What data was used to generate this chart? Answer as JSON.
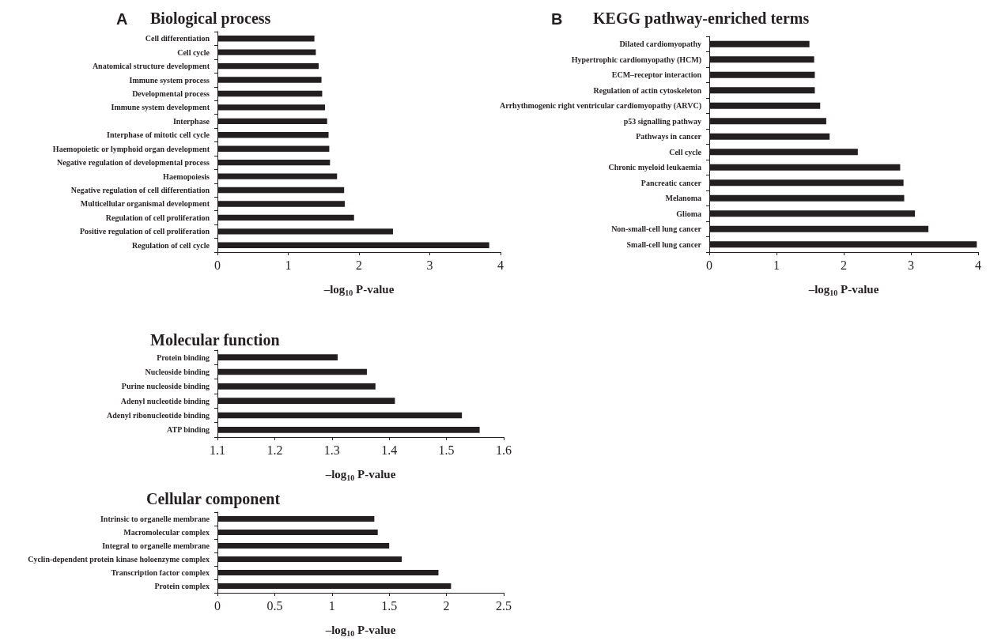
{
  "chart_data": [
    {
      "type": "bar",
      "orientation": "horizontal",
      "title": "Biological process",
      "annotations": [
        "A"
      ],
      "xlabel": "–log$_{10}$ P-value",
      "color": "#231f20",
      "categories": [
        "Cell differentiation",
        "Cell cycle",
        "Anatomical structure development",
        "Immune system process",
        "Developmental process",
        "Immune system development",
        "Interphase",
        "Interphase of mitotic cell cycle",
        "Haemopoietic or lymphoid organ development",
        "Negative regulation of developmental process",
        "Haemopoiesis",
        "Negative regulation of cell differentiation",
        "Multicellular organismal development",
        "Regulation of cell proliferation",
        "Positive regulation of cell proliferation",
        "Regulation of cell cycle"
      ],
      "values": [
        1.37,
        1.39,
        1.43,
        1.47,
        1.48,
        1.52,
        1.55,
        1.57,
        1.58,
        1.59,
        1.69,
        1.79,
        1.8,
        1.93,
        2.48,
        3.84
      ],
      "xlim": [
        0,
        4
      ],
      "xticks": [
        0,
        1,
        2,
        3,
        4
      ]
    },
    {
      "type": "bar",
      "orientation": "horizontal",
      "title": "KEGG pathway-enriched terms",
      "annotations": [
        "B"
      ],
      "xlabel": "–log$_{10}$ P-value",
      "color": "#231f20",
      "categories": [
        "Dilated cardiomyopathy",
        "Hypertrophic cardiomyopathy (HCM)",
        "ECM–receptor interaction",
        "Regulation of actin cytoskeleton",
        "Arrhythmogenic right ventricular cardiomyopathy (ARVC)",
        "p53 signalling pathway",
        "Pathways in cancer",
        "Cell cycle",
        "Chronic myeloid leukaemia",
        "Pancreatic cancer",
        "Melanoma",
        "Glioma",
        "Non-small-cell lung cancer",
        "Small-cell lung cancer"
      ],
      "values": [
        1.49,
        1.56,
        1.57,
        1.57,
        1.65,
        1.74,
        1.79,
        2.21,
        2.84,
        2.89,
        2.9,
        3.06,
        3.26,
        3.98
      ],
      "xlim": [
        0,
        4
      ],
      "xticks": [
        0,
        1,
        2,
        3,
        4
      ]
    },
    {
      "type": "bar",
      "orientation": "horizontal",
      "title": "Molecular function",
      "xlabel": "–log$_{10}$ P-value",
      "color": "#231f20",
      "categories": [
        "Protein binding",
        "Nucleoside binding",
        "Purine nucleoside binding",
        "Adenyl nucleotide binding",
        "Adenyl ribonucleotide binding",
        "ATP binding"
      ],
      "values": [
        1.31,
        1.361,
        1.376,
        1.41,
        1.527,
        1.558
      ],
      "xlim": [
        1.1,
        1.6
      ],
      "xticks": [
        1.1,
        1.2,
        1.3,
        1.4,
        1.5,
        1.6
      ]
    },
    {
      "type": "bar",
      "orientation": "horizontal",
      "title": "Cellular component",
      "xlabel": "–log$_{10}$ P-value",
      "color": "#231f20",
      "categories": [
        "Intrinsic to organelle membrane",
        "Macromolecular complex",
        "Integral to organelle membrane",
        "Cyclin-dependent protein kinase holoenzyme complex",
        "Transcription factor complex",
        "Protein complex"
      ],
      "values": [
        1.37,
        1.4,
        1.5,
        1.61,
        1.93,
        2.04
      ],
      "xlim": [
        0,
        2.5
      ],
      "xticks": [
        0,
        0.5,
        1,
        1.5,
        2,
        2.5
      ]
    }
  ]
}
